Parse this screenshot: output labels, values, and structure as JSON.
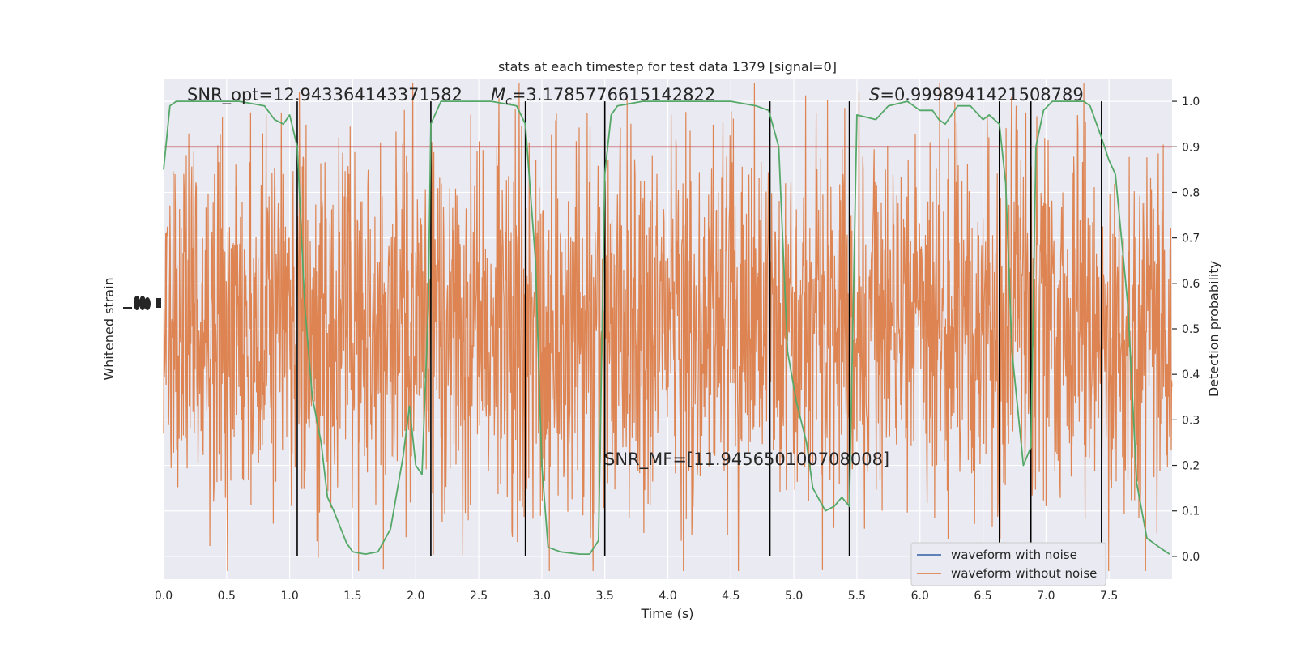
{
  "chart_data": {
    "type": "line",
    "title": "stats at each timestep for test data 1379 [signal=0]",
    "xlabel": "Time (s)",
    "ylabel_left": "Whitened strain",
    "ylabel_right": "Detection probability",
    "xlim": [
      0,
      8.0
    ],
    "ylim_right": [
      -0.05,
      1.05
    ],
    "x_ticks": [
      0.0,
      0.5,
      1.0,
      1.5,
      2.0,
      2.5,
      3.0,
      3.5,
      4.0,
      4.5,
      5.0,
      5.5,
      6.0,
      6.5,
      7.0,
      7.5
    ],
    "x_tick_labels": [
      "0.0",
      "0.5",
      "1.0",
      "1.5",
      "2.0",
      "2.5",
      "3.0",
      "3.5",
      "4.0",
      "4.5",
      "5.0",
      "5.5",
      "6.0",
      "6.5",
      "7.0",
      "7.5"
    ],
    "y_right_ticks": [
      0.0,
      0.1,
      0.2,
      0.3,
      0.4,
      0.5,
      0.6,
      0.7,
      0.8,
      0.9,
      1.0
    ],
    "y_right_tick_labels": [
      "0.0",
      "0.1",
      "0.2",
      "0.3",
      "0.4",
      "0.5",
      "0.6",
      "0.7",
      "0.8",
      "0.9",
      "1.0"
    ],
    "threshold": 0.9,
    "vertical_lines": [
      1.06,
      2.12,
      2.87,
      3.5,
      4.81,
      5.44,
      6.63,
      6.88,
      7.44
    ],
    "detection_probability": {
      "x": [
        0.0,
        0.05,
        0.1,
        0.2,
        0.4,
        0.6,
        0.8,
        0.88,
        0.95,
        1.0,
        1.06,
        1.12,
        1.18,
        1.25,
        1.3,
        1.35,
        1.45,
        1.5,
        1.6,
        1.7,
        1.8,
        1.9,
        1.95,
        2.0,
        2.05,
        2.1,
        2.12,
        2.2,
        2.4,
        2.6,
        2.8,
        2.87,
        2.95,
        3.0,
        3.05,
        3.15,
        3.3,
        3.38,
        3.45,
        3.5,
        3.55,
        3.6,
        3.8,
        4.0,
        4.2,
        4.5,
        4.7,
        4.8,
        4.88,
        4.95,
        5.02,
        5.1,
        5.15,
        5.25,
        5.32,
        5.38,
        5.44,
        5.5,
        5.65,
        5.75,
        5.9,
        6.0,
        6.1,
        6.15,
        6.2,
        6.3,
        6.4,
        6.5,
        6.55,
        6.63,
        6.68,
        6.73,
        6.82,
        6.88,
        6.92,
        6.98,
        7.05,
        7.2,
        7.3,
        7.35,
        7.44,
        7.5,
        7.55,
        7.65,
        7.72,
        7.8,
        7.9,
        7.98
      ],
      "y": [
        0.85,
        0.99,
        1.0,
        1.0,
        1.0,
        1.0,
        0.99,
        0.96,
        0.95,
        0.97,
        0.9,
        0.55,
        0.35,
        0.25,
        0.13,
        0.1,
        0.03,
        0.01,
        0.005,
        0.01,
        0.06,
        0.22,
        0.33,
        0.2,
        0.18,
        0.55,
        0.95,
        1.0,
        1.0,
        1.0,
        0.99,
        0.95,
        0.65,
        0.2,
        0.02,
        0.01,
        0.005,
        0.005,
        0.035,
        0.84,
        0.97,
        0.99,
        1.0,
        1.0,
        1.0,
        1.0,
        0.99,
        0.98,
        0.9,
        0.45,
        0.34,
        0.25,
        0.15,
        0.1,
        0.11,
        0.13,
        0.11,
        0.97,
        0.96,
        0.99,
        1.0,
        0.98,
        0.98,
        0.96,
        0.95,
        0.99,
        0.99,
        0.96,
        0.97,
        0.95,
        0.82,
        0.45,
        0.2,
        0.24,
        0.9,
        0.98,
        1.0,
        1.0,
        1.0,
        0.99,
        0.92,
        0.87,
        0.84,
        0.55,
        0.16,
        0.04,
        0.02,
        0.005
      ]
    },
    "annotations": [
      {
        "text": "SNR_opt=12.943364143371582",
        "x": 0.19,
        "y": 1.0
      },
      {
        "text": "=3.1785776615142822",
        "math_prefix": "M",
        "math_sub": "c",
        "x": 2.62,
        "y": 1.0
      },
      {
        "text": "=0.9998941421508789",
        "math_prefix": "S",
        "x": 5.95,
        "y": 1.0
      },
      {
        "text": "SNR_MF=[11.945650100708008]",
        "x": 3.5,
        "y": 0.2
      }
    ],
    "legend": {
      "placement": "lower right",
      "entries": [
        {
          "label": "waveform with noise",
          "color": "#4c72b0"
        },
        {
          "label": "waveform without noise",
          "color": "#dd8452"
        }
      ]
    },
    "colors": {
      "background": "#eaeaf2",
      "grid": "#ffffff",
      "noise_waveform": "#dd8452",
      "clean_waveform": "#4c72b0",
      "probability": "#55a868",
      "threshold": "#c44e52",
      "vertical": "#000000"
    }
  }
}
